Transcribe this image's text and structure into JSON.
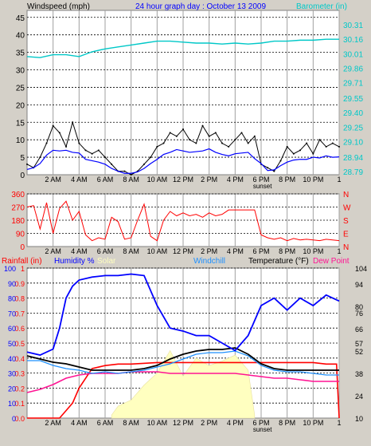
{
  "colors": {
    "bg": "#d4d0c8",
    "plot": "#ffffff",
    "grid_v": "#a0a0a0",
    "wind": "#000000",
    "gust": "#000000",
    "wind_avg": "#0000ff",
    "barometer": "#00c8c8",
    "direction": "#ff0000",
    "rainfall": "#ff0000",
    "humidity": "#0000ff",
    "solar": "#ffffc0",
    "windchill": "#1e90ff",
    "temperature": "#000000",
    "dewpoint": "#ff1493",
    "axis_cyan": "#00c8c8",
    "axis_red": "#ff0000"
  },
  "header": {
    "windspeed_label": "Windspeed (mph)",
    "title": "24 hour graph day : October 13 2009",
    "barometer_label": "Barometer (in)"
  },
  "bottom_legend": {
    "rainfall": "Rainfall (in)",
    "humidity": "Humidity %",
    "solar": "Solar",
    "windchill": "Windchill",
    "temperature": "Temperature (°F)",
    "dewpoint": "Dew Point"
  },
  "chart_data": [
    {
      "type": "line",
      "x_ticks": [
        "2 AM",
        "4 AM",
        "6 AM",
        "8 AM",
        "10 AM",
        "12 PM",
        "2 PM",
        "4 PM",
        "6 PM",
        "8 PM",
        "10 PM",
        "1"
      ],
      "annotation": "sunset",
      "y_left": {
        "label": "Windspeed (mph)",
        "ticks": [
          0,
          5,
          10,
          15,
          20,
          25,
          30,
          35,
          40,
          45
        ],
        "range": [
          0,
          47
        ]
      },
      "y_right": {
        "label": "Barometer (in)",
        "ticks": [
          "28.79",
          "28.94",
          "29.10",
          "29.25",
          "29.40",
          "29.55",
          "29.71",
          "29.86",
          "30.01",
          "30.16",
          "30.31"
        ],
        "range": [
          28.79,
          30.31
        ]
      },
      "series": [
        {
          "name": "Windspeed (mph)",
          "x_hours": [
            0,
            0.5,
            1,
            1.5,
            2,
            2.5,
            3,
            3.5,
            4,
            4.5,
            5,
            5.5,
            6,
            6.5,
            7,
            7.5,
            8,
            8.5,
            9,
            9.5,
            10,
            10.5,
            11,
            11.5,
            12,
            12.5,
            13,
            13.5,
            14,
            14.5,
            15,
            15.5,
            16,
            16.5,
            17,
            17.5,
            18,
            18.5,
            19,
            19.5,
            20,
            20.5,
            21,
            21.5,
            22,
            22.5,
            23,
            23.5,
            24
          ],
          "values": [
            3,
            2,
            5,
            9,
            14,
            12,
            8,
            15,
            9,
            7,
            6,
            7,
            5,
            3,
            1,
            1,
            0,
            1,
            3,
            5,
            8,
            9,
            12,
            11,
            13,
            10,
            9,
            14,
            11,
            12,
            9,
            8,
            10,
            12,
            9,
            11,
            3,
            2,
            1,
            4,
            8,
            6,
            7,
            9,
            6,
            10,
            8,
            9,
            8
          ]
        },
        {
          "name": "Barometer (in)",
          "x_hours": [
            0,
            1,
            2,
            3,
            4,
            5,
            6,
            7,
            8,
            9,
            10,
            11,
            12,
            13,
            14,
            15,
            16,
            17,
            18,
            19,
            20,
            21,
            22,
            23,
            24
          ],
          "values": [
            29.98,
            29.97,
            30.0,
            30.0,
            29.98,
            30.03,
            30.06,
            30.08,
            30.1,
            30.12,
            30.14,
            30.14,
            30.13,
            30.12,
            30.12,
            30.11,
            30.12,
            30.11,
            30.12,
            30.14,
            30.14,
            30.15,
            30.15,
            30.16,
            30.16
          ]
        }
      ]
    },
    {
      "type": "line",
      "x_ticks": [
        "2 AM",
        "4 AM",
        "6 AM",
        "8 AM",
        "10 AM",
        "12 PM",
        "2 PM",
        "4 PM",
        "6 PM",
        "8 PM",
        "10 PM",
        "1"
      ],
      "y_left": {
        "ticks": [
          0,
          90,
          180,
          270,
          360
        ],
        "range": [
          0,
          360
        ]
      },
      "y_right": {
        "ticks": [
          "N",
          "W",
          "S",
          "E",
          "N"
        ]
      },
      "series": [
        {
          "name": "Wind direction",
          "x_hours": [
            0,
            0.5,
            1,
            1.5,
            2,
            2.5,
            3,
            3.5,
            4,
            4.5,
            5,
            5.5,
            6,
            6.5,
            7,
            7.5,
            8,
            8.5,
            9,
            9.5,
            10,
            10.5,
            11,
            11.5,
            12,
            12.5,
            13,
            13.5,
            14,
            14.5,
            15,
            15.5,
            16,
            16.5,
            17,
            17.5,
            18,
            18.5,
            19,
            19.5,
            20,
            20.5,
            21,
            21.5,
            22,
            22.5,
            23,
            23.5,
            24
          ],
          "values": [
            270,
            280,
            120,
            300,
            90,
            260,
            310,
            180,
            240,
            80,
            40,
            60,
            50,
            200,
            170,
            50,
            60,
            180,
            290,
            70,
            40,
            180,
            240,
            210,
            230,
            210,
            220,
            200,
            230,
            210,
            220,
            250,
            250,
            250,
            250,
            250,
            80,
            60,
            50,
            60,
            40,
            55,
            45,
            50,
            45,
            40,
            50,
            45,
            40
          ]
        }
      ]
    },
    {
      "type": "line",
      "x_ticks": [
        "2 AM",
        "4 AM",
        "6 AM",
        "8 AM",
        "10 AM",
        "12 PM",
        "2 PM",
        "4 PM",
        "6 PM",
        "8 PM",
        "10 PM",
        "1"
      ],
      "annotation": "sunset",
      "y_left": {
        "label": "Rainfall (in)",
        "ticks": [
          "0.0",
          "0.1",
          "0.2",
          "0.3",
          "0.4",
          "0.5",
          "0.6",
          "0.7",
          "0.8",
          "0.9",
          "1"
        ],
        "range": [
          0,
          1
        ]
      },
      "y_left2": {
        "label": "Humidity %",
        "ticks": [
          0,
          10,
          20,
          30,
          40,
          50,
          60,
          70,
          80,
          90,
          100
        ],
        "range": [
          0,
          100
        ]
      },
      "y_right": {
        "label": "Temperature (°F)",
        "ticks": [
          10,
          24,
          38,
          52,
          66,
          80,
          94
        ],
        "extra_ticks": [
          104,
          57,
          76
        ],
        "range": [
          10,
          104
        ]
      },
      "series": [
        {
          "name": "Humidity %",
          "x_hours": [
            0,
            1,
            2,
            2.5,
            3,
            3.5,
            4,
            5,
            6,
            7,
            8,
            9,
            10,
            11,
            12,
            13,
            14,
            15,
            16,
            17,
            18,
            19,
            20,
            21,
            22,
            23,
            24
          ],
          "values": [
            44,
            42,
            46,
            60,
            80,
            88,
            92,
            94,
            95,
            95,
            96,
            95,
            75,
            60,
            58,
            55,
            55,
            50,
            45,
            55,
            75,
            80,
            72,
            80,
            75,
            82,
            78
          ]
        },
        {
          "name": "Rainfall (in)",
          "x_hours": [
            0,
            1,
            2,
            2.5,
            3,
            3.5,
            4,
            5,
            6,
            7,
            8,
            10,
            12,
            14,
            16,
            18,
            20,
            22,
            23,
            23.8,
            24
          ],
          "values": [
            0.0,
            0.0,
            0.0,
            0.0,
            0.05,
            0.1,
            0.2,
            0.33,
            0.35,
            0.36,
            0.36,
            0.37,
            0.37,
            0.37,
            0.37,
            0.37,
            0.37,
            0.37,
            0.36,
            0.36,
            0.0
          ]
        },
        {
          "name": "Temperature (°F)",
          "x_hours": [
            0,
            1,
            2,
            3,
            4,
            5,
            6,
            7,
            8,
            9,
            10,
            11,
            12,
            13,
            14,
            15,
            16,
            17,
            18,
            19,
            20,
            21,
            22,
            23,
            24
          ],
          "values": [
            49,
            47,
            45,
            44,
            42,
            40,
            40,
            40,
            40,
            41,
            43,
            47,
            50,
            52,
            53,
            53,
            54,
            50,
            44,
            41,
            40,
            40,
            40,
            40,
            40
          ]
        },
        {
          "name": "Windchill",
          "x_hours": [
            0,
            1,
            2,
            3,
            4,
            5,
            6,
            7,
            8,
            9,
            10,
            11,
            12,
            13,
            14,
            15,
            16,
            17,
            18,
            19,
            20,
            21,
            22,
            23,
            24
          ],
          "values": [
            46,
            46,
            43,
            41,
            40,
            38,
            39,
            38,
            39,
            40,
            42,
            44,
            47,
            50,
            51,
            51,
            52,
            49,
            43,
            40,
            39,
            39,
            38,
            37,
            37
          ]
        },
        {
          "name": "Dew Point",
          "x_hours": [
            0,
            1,
            2,
            3,
            4,
            5,
            6,
            7,
            8,
            9,
            10,
            11,
            12,
            13,
            14,
            15,
            16,
            17,
            18,
            19,
            20,
            21,
            22,
            23,
            24
          ],
          "values": [
            26,
            28,
            31,
            35,
            37,
            38,
            38,
            38,
            39,
            39,
            39,
            38,
            38,
            38,
            38,
            38,
            38,
            37,
            36,
            35,
            35,
            34,
            33,
            33,
            33
          ]
        },
        {
          "name": "Solar",
          "x_hours": [
            6.5,
            7,
            8,
            9,
            10,
            11,
            12,
            13,
            14,
            15,
            16,
            17,
            17.5
          ],
          "values": [
            2,
            8,
            12,
            22,
            30,
            45,
            28,
            40,
            35,
            38,
            42,
            32,
            2
          ]
        }
      ]
    }
  ]
}
